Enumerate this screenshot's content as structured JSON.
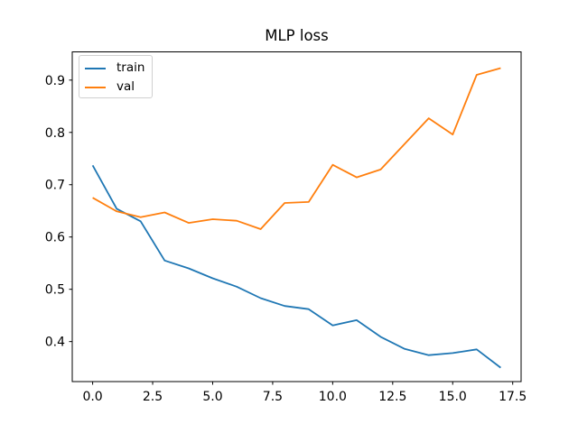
{
  "chart_data": {
    "type": "line",
    "title": "MLP loss",
    "xlabel": "",
    "ylabel": "",
    "x": [
      0,
      1,
      2,
      3,
      4,
      5,
      6,
      7,
      8,
      9,
      10,
      11,
      12,
      13,
      14,
      15,
      16,
      17
    ],
    "series": [
      {
        "name": "train",
        "color": "#1f77b4",
        "values": [
          0.737,
          0.654,
          0.63,
          0.555,
          0.54,
          0.521,
          0.505,
          0.483,
          0.468,
          0.462,
          0.431,
          0.441,
          0.409,
          0.386,
          0.374,
          0.378,
          0.385,
          0.35
        ]
      },
      {
        "name": "val",
        "color": "#ff7f0e",
        "values": [
          0.675,
          0.649,
          0.638,
          0.647,
          0.627,
          0.634,
          0.631,
          0.615,
          0.665,
          0.667,
          0.738,
          0.714,
          0.729,
          0.778,
          0.827,
          0.796,
          0.91,
          0.923
        ]
      }
    ],
    "xlim": [
      -0.85,
      17.85
    ],
    "ylim": [
      0.3235,
      0.954
    ],
    "xticks": [
      0,
      2.5,
      5,
      7.5,
      10,
      12.5,
      15,
      17.5
    ],
    "xtick_labels": [
      "0.0",
      "2.5",
      "5.0",
      "7.5",
      "10.0",
      "12.5",
      "15.0",
      "17.5"
    ],
    "yticks": [
      0.4,
      0.5,
      0.6,
      0.7,
      0.8,
      0.9
    ],
    "ytick_labels": [
      "0.4",
      "0.5",
      "0.6",
      "0.7",
      "0.8",
      "0.9"
    ],
    "legend_position": "upper left",
    "grid": false,
    "axis_color": "#000000",
    "background_color": "#ffffff"
  }
}
